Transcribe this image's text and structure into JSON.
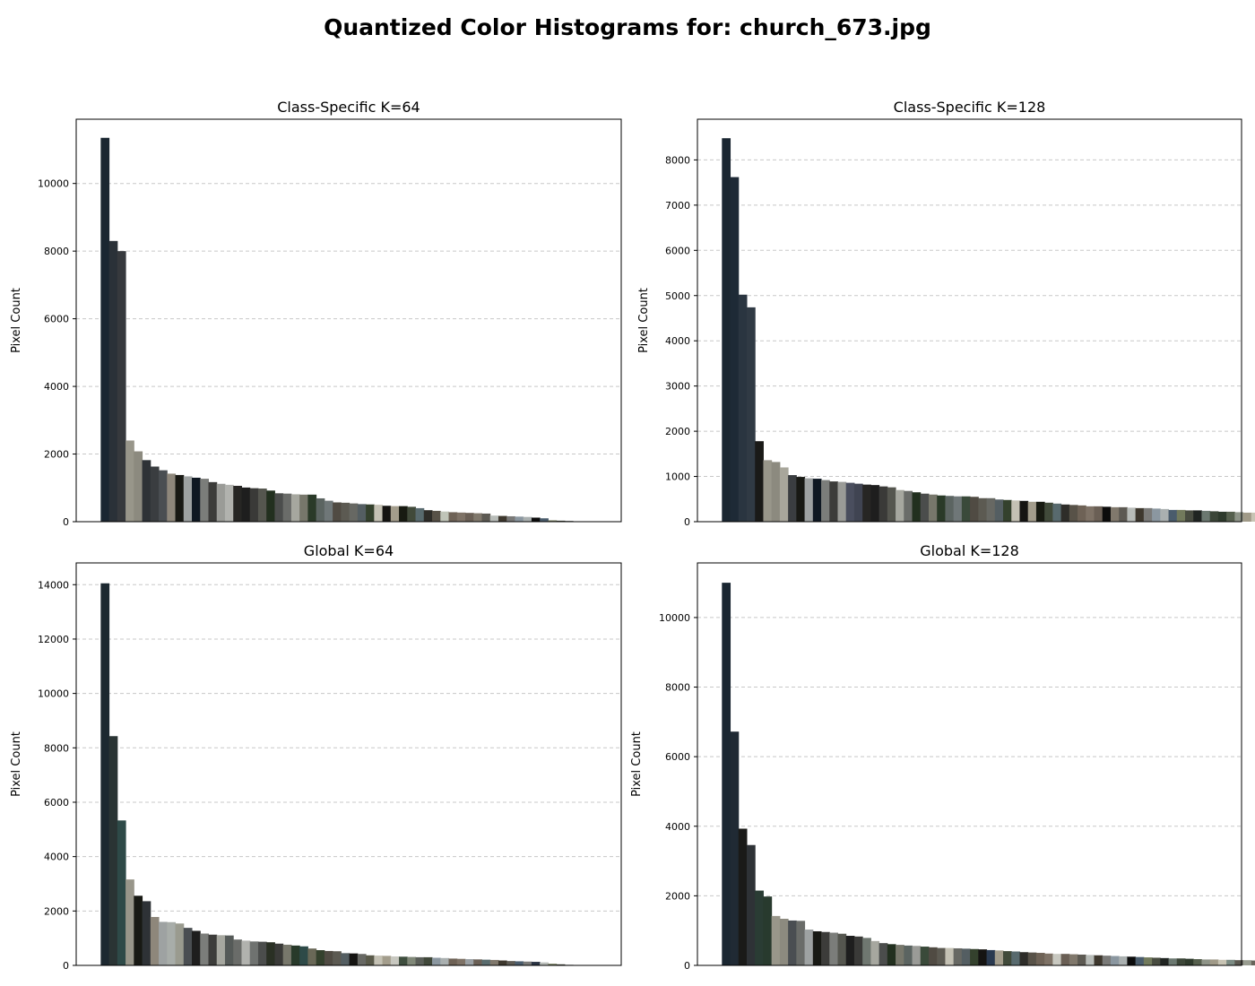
{
  "figure": {
    "title": "Quantized Color Histograms for: church_673.jpg"
  },
  "chart_data": [
    {
      "type": "bar",
      "title": "Class-Specific K=64",
      "xlabel": "",
      "ylabel": "Pixel Count",
      "ylim": [
        0,
        11900
      ],
      "yticks": [
        0,
        2000,
        4000,
        6000,
        8000,
        10000
      ],
      "grid": "y-dashed",
      "x_ticks_visible": false,
      "values": [
        11350,
        8300,
        8000,
        2400,
        2080,
        1820,
        1630,
        1520,
        1420,
        1380,
        1340,
        1300,
        1270,
        1170,
        1120,
        1090,
        1060,
        1010,
        990,
        980,
        920,
        840,
        830,
        810,
        800,
        800,
        690,
        620,
        570,
        560,
        540,
        520,
        510,
        500,
        470,
        460,
        460,
        440,
        400,
        340,
        320,
        300,
        280,
        270,
        260,
        250,
        240,
        180,
        170,
        160,
        150,
        140,
        120,
        100,
        40,
        30,
        20
      ],
      "colors": [
        "#1a2631",
        "#2a3138",
        "#36393d",
        "#98968a",
        "#8c8a7f",
        "#2e3236",
        "#3a3d40",
        "#4a4e52",
        "#8e877b",
        "#181914",
        "#9ea2a2",
        "#0f1822",
        "#7b7d7a",
        "#3c3c3a",
        "#9a9b97",
        "#b1b2ae",
        "#272624",
        "#1e1e1e",
        "#3a3a38",
        "#55564f",
        "#22301f",
        "#4b4d4c",
        "#6a6c69",
        "#a6a79f",
        "#77776b",
        "#2a3a28",
        "#5b6461",
        "#6f7778",
        "#504b43",
        "#5c5a52",
        "#676863",
        "#545e62",
        "#34412d",
        "#c4c1b4",
        "#151412",
        "#a39d8c",
        "#181b12",
        "#414a3a",
        "#586a6e",
        "#2e2d29",
        "#585248",
        "#c0c4b8",
        "#6e6256",
        "#7e7266",
        "#6a5f55",
        "#80786c",
        "#5d5a53",
        "#b8bcb8",
        "#3e382e",
        "#7a7a78",
        "#8b97a0",
        "#aab0b0",
        "#0c0c0c",
        "#4a5c6c",
        "#727a5c",
        "#484c40",
        "#202522"
      ]
    },
    {
      "type": "bar",
      "title": "Class-Specific K=128",
      "xlabel": "",
      "ylabel": "Pixel Count",
      "ylim": [
        0,
        8900
      ],
      "yticks": [
        0,
        1000,
        2000,
        3000,
        4000,
        5000,
        6000,
        7000,
        8000
      ],
      "grid": "y-dashed",
      "x_ticks_visible": false,
      "values": [
        8480,
        7620,
        5020,
        4740,
        1780,
        1360,
        1320,
        1200,
        1030,
        990,
        960,
        950,
        920,
        890,
        880,
        860,
        840,
        820,
        810,
        780,
        760,
        700,
        680,
        650,
        620,
        600,
        580,
        570,
        560,
        560,
        550,
        520,
        520,
        490,
        480,
        470,
        460,
        440,
        440,
        420,
        400,
        380,
        370,
        360,
        340,
        340,
        330,
        320,
        320,
        310,
        300,
        300,
        290,
        280,
        260,
        260,
        250,
        250,
        240,
        230,
        220,
        220,
        210,
        200,
        200,
        190,
        180,
        180,
        170,
        170,
        160,
        150,
        150,
        150,
        140,
        130,
        130,
        120,
        120,
        110,
        100,
        100,
        90,
        80,
        80,
        70,
        70,
        60,
        60,
        60,
        50,
        50,
        40,
        40,
        30,
        30,
        20,
        20,
        20,
        10
      ],
      "colors": [
        "#1a2631",
        "#1e2a36",
        "#2a3540",
        "#303a44",
        "#1a1a18",
        "#98968a",
        "#8c8a7f",
        "#a8a69b",
        "#3a3d40",
        "#181914",
        "#9ea2a2",
        "#0f1822",
        "#7b7d7a",
        "#3c3c3a",
        "#9a9b97",
        "#4a4e5e",
        "#404452",
        "#272624",
        "#1e1e1e",
        "#3a3a38",
        "#55564f",
        "#a6a79f",
        "#6a6c69",
        "#22301f",
        "#4b4d4c",
        "#77776b",
        "#2a3a28",
        "#5b6461",
        "#6f7778",
        "#3a4a3a",
        "#504b43",
        "#5c5a52",
        "#676863",
        "#545e62",
        "#34412d",
        "#c4c1b4",
        "#151412",
        "#a39d8c",
        "#181b12",
        "#414a3a",
        "#586a6e",
        "#2e2d29",
        "#585248",
        "#6e6256",
        "#7e7266",
        "#6a5f55",
        "#0c0c0c",
        "#80786c",
        "#5d5a53",
        "#b8bcb8",
        "#3e382e",
        "#7a7a78",
        "#8b97a0",
        "#aab0b0",
        "#4a5c6c",
        "#727a5c",
        "#484c40",
        "#202522",
        "#6b7870",
        "#3c4638",
        "#2e3a2c",
        "#56604e",
        "#8e9488",
        "#a09a88",
        "#c8c4b4",
        "#7c8c84",
        "#5a5850",
        "#989c90",
        "#68645a",
        "#b4aea0",
        "#1c1c1a",
        "#3e4a50",
        "#9c968a",
        "#6c7880",
        "#849098",
        "#a8b4b8",
        "#0a0a0a",
        "#4c5a4c",
        "#747e70",
        "#5e6a62",
        "#2c3430",
        "#868074",
        "#4a463e",
        "#aaa49a",
        "#626e72",
        "#3a4244",
        "#7a8678",
        "#909a94",
        "#1a2018",
        "#50584a",
        "#acb0a4",
        "#383830",
        "#6c6a60",
        "#94a0a0",
        "#242a28",
        "#444c48",
        "#8a8a80",
        "#5e6054",
        "#b0b4ac",
        "#2a2e2a"
      ]
    },
    {
      "type": "bar",
      "title": "Global K=64",
      "xlabel": "",
      "ylabel": "Pixel Count",
      "ylim": [
        0,
        14800
      ],
      "yticks": [
        0,
        2000,
        4000,
        6000,
        8000,
        10000,
        12000,
        14000
      ],
      "grid": "y-dashed",
      "x_ticks_visible": false,
      "values": [
        14050,
        8430,
        5330,
        3160,
        2560,
        2360,
        1780,
        1600,
        1590,
        1540,
        1380,
        1270,
        1170,
        1130,
        1110,
        1100,
        950,
        910,
        880,
        870,
        850,
        800,
        760,
        730,
        700,
        620,
        560,
        530,
        520,
        450,
        440,
        420,
        370,
        360,
        350,
        330,
        320,
        310,
        300,
        300,
        280,
        270,
        250,
        240,
        230,
        220,
        210,
        200,
        180,
        160,
        150,
        140,
        130,
        110,
        60,
        40,
        20
      ],
      "colors": [
        "#1c2830",
        "#2a3434",
        "#2e4a48",
        "#98968a",
        "#181914",
        "#2e3236",
        "#8e877b",
        "#9ea2a2",
        "#a8ada9",
        "#9a9b8f",
        "#4a4e52",
        "#1e1e1e",
        "#7b7d7a",
        "#3c3c3a",
        "#a6a79f",
        "#555a58",
        "#6a6c69",
        "#b1b2ae",
        "#6f7270",
        "#4b4d4c",
        "#2a3024",
        "#3a3a38",
        "#77776b",
        "#283a2a",
        "#2e4a48",
        "#696857",
        "#34412d",
        "#504b43",
        "#5c5a52",
        "#545e62",
        "#151412",
        "#676863",
        "#5a5a4a",
        "#c4c1b4",
        "#a39d8c",
        "#c8c8c0",
        "#3e4e3e",
        "#808878",
        "#5a5e58",
        "#40483a",
        "#8b97a0",
        "#aab0b0",
        "#6e6256",
        "#7e7266",
        "#9aa0a4",
        "#6a5f55",
        "#596c6e",
        "#80786c",
        "#3e382e",
        "#5d5a53",
        "#4a5c6c",
        "#7a7a78",
        "#2a3444",
        "#b8bcb8",
        "#727a5c",
        "#484c40",
        "#202522"
      ]
    },
    {
      "type": "bar",
      "title": "Global K=128",
      "xlabel": "",
      "ylabel": "Pixel Count",
      "ylim": [
        0,
        11570
      ],
      "yticks": [
        0,
        2000,
        4000,
        6000,
        8000,
        10000
      ],
      "grid": "y-dashed",
      "x_ticks_visible": false,
      "values": [
        11000,
        6720,
        3930,
        3460,
        2150,
        1980,
        1420,
        1340,
        1290,
        1280,
        1030,
        980,
        960,
        940,
        910,
        850,
        830,
        790,
        700,
        640,
        610,
        590,
        570,
        560,
        540,
        520,
        500,
        500,
        490,
        480,
        470,
        460,
        440,
        430,
        410,
        400,
        380,
        370,
        360,
        340,
        330,
        330,
        320,
        310,
        300,
        290,
        280,
        270,
        260,
        250,
        240,
        230,
        220,
        210,
        200,
        200,
        190,
        180,
        170,
        170,
        160,
        160,
        150,
        150,
        140,
        140,
        130,
        130,
        120,
        120,
        110,
        110,
        100,
        100,
        90,
        90,
        80,
        80,
        70,
        70,
        60,
        60,
        60,
        50,
        50,
        50,
        40,
        40,
        30,
        30,
        20,
        20,
        10,
        10
      ],
      "colors": [
        "#1a2631",
        "#202a34",
        "#1a1a18",
        "#2e3236",
        "#2a3c34",
        "#283a2e",
        "#98968a",
        "#8c8a7f",
        "#4a4e52",
        "#6a6c69",
        "#9ea2a2",
        "#181914",
        "#3c3c3a",
        "#7b7d7a",
        "#55564f",
        "#1e1e1e",
        "#3a3a38",
        "#6f7770",
        "#a6a79f",
        "#4b4d4c",
        "#22301f",
        "#77776b",
        "#5b6461",
        "#9a9b97",
        "#3a4a3a",
        "#504b43",
        "#5c5a52",
        "#c4c1b4",
        "#676863",
        "#545e62",
        "#34412d",
        "#151412",
        "#2a3a50",
        "#a39d8c",
        "#414a3a",
        "#586a6e",
        "#2e2d29",
        "#585248",
        "#6e6256",
        "#7e7266",
        "#c8c8c0",
        "#6a5f55",
        "#80786c",
        "#5d5a53",
        "#b8bcb8",
        "#3e382e",
        "#7a7a78",
        "#8b97a0",
        "#aab0b0",
        "#0c0c0c",
        "#4a5c6c",
        "#727a5c",
        "#484c40",
        "#202522",
        "#6b7870",
        "#3c4638",
        "#2e3a2c",
        "#56604e",
        "#8e9488",
        "#a09a88",
        "#c8c4b4",
        "#7c8c84",
        "#5a5850",
        "#989c90",
        "#68645a",
        "#b4aea0",
        "#1c1c1a",
        "#3e4a50",
        "#9c968a",
        "#6c7880",
        "#849098",
        "#a8b4b8",
        "#0a0a0a",
        "#4c5a4c",
        "#747e70",
        "#5e6a62",
        "#2c3430",
        "#868074",
        "#4a463e",
        "#aaa49a",
        "#626e72",
        "#3a4244",
        "#7a8678",
        "#909a94",
        "#1a2018",
        "#50584a",
        "#acb0a4",
        "#383830",
        "#6c6a60",
        "#94a0a0",
        "#242a28",
        "#444c48",
        "#8a8a80",
        "#5e6054"
      ]
    }
  ]
}
